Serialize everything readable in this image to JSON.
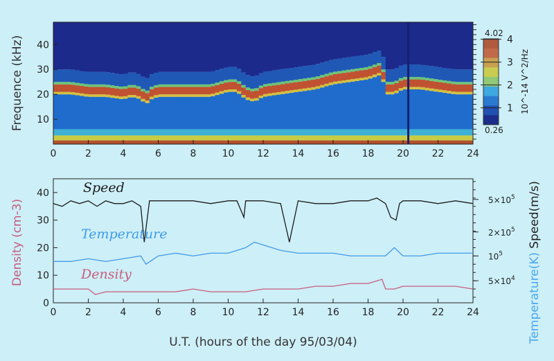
{
  "chart_data": [
    {
      "type": "heatmap",
      "title": "",
      "xlabel": "",
      "ylabel": "Frequence (kHz)",
      "xlim": [
        0,
        24
      ],
      "ylim": [
        0,
        49
      ],
      "xticks": [
        "0",
        "2",
        "4",
        "6",
        "8",
        "10",
        "12",
        "14",
        "16",
        "18",
        "20",
        "22",
        "24"
      ],
      "yticks": [
        "10",
        "20",
        "30",
        "40"
      ],
      "colorbar": {
        "label": "10^-14 V^2/Hz",
        "min_label": "0.26",
        "max_label": "4.02",
        "ticks": [
          "1",
          "2",
          "3",
          "4"
        ]
      },
      "ridge_hours": [
        0,
        1,
        2,
        3,
        4,
        4.5,
        5,
        5.3,
        5.6,
        6,
        7,
        8,
        9,
        10,
        10.5,
        11,
        11.5,
        12,
        13,
        14,
        15,
        16,
        17,
        18,
        18.8,
        19,
        19.5,
        20,
        21,
        22,
        23,
        24
      ],
      "ridge_khz": [
        22,
        22,
        21,
        21,
        20,
        21,
        20,
        18,
        20,
        21,
        21,
        21,
        21,
        23,
        23,
        20,
        19,
        21,
        22,
        23,
        24,
        26,
        27,
        28,
        30,
        22,
        22,
        24,
        24,
        23,
        22,
        22
      ],
      "dark_line_hour": 20.3
    },
    {
      "type": "line",
      "xlabel": "U.T. (hours of the day 95/03/04)",
      "ylabel": "Density (cm-3)",
      "ylim": [
        0,
        45
      ],
      "xlim": [
        0,
        24
      ],
      "xticks": [
        "0",
        "2",
        "4",
        "6",
        "8",
        "10",
        "12",
        "14",
        "16",
        "18",
        "20",
        "22",
        "24"
      ],
      "yticks": [
        "0",
        "10",
        "20",
        "30",
        "40"
      ],
      "right_axis": {
        "label_speed": "Speed(m/s)",
        "label_temp": "Temperature(K)",
        "ticks": [
          {
            "label": "5×10",
            "exp": "5",
            "v": 37.5
          },
          {
            "label": "2×10",
            "exp": "5",
            "v": 25.7
          },
          {
            "label": "10",
            "exp": "5",
            "v": 17
          },
          {
            "label": "5×10",
            "exp": "4",
            "v": 8
          }
        ]
      },
      "series": [
        {
          "name": "Speed",
          "color": "#1a1a1a",
          "x": [
            0,
            0.5,
            1,
            1.5,
            2,
            2.5,
            3,
            3.5,
            4,
            4.5,
            5,
            5.2,
            5.5,
            6,
            7,
            8,
            9,
            10,
            10.5,
            10.9,
            11,
            12,
            13,
            13.5,
            14,
            15,
            16,
            17,
            18,
            18.5,
            19,
            19.3,
            19.6,
            19.8,
            20,
            21,
            22,
            23,
            24
          ],
          "y": [
            36,
            35,
            37,
            36,
            37,
            35,
            37,
            36,
            36,
            37,
            35,
            22,
            37,
            37,
            37,
            37,
            36,
            37,
            37,
            31,
            37,
            37,
            36,
            22,
            37,
            36,
            36,
            37,
            37,
            38,
            36,
            31,
            30,
            36,
            37,
            37,
            36,
            37,
            36
          ]
        },
        {
          "name": "Temperature",
          "color": "#3f9ae8",
          "x": [
            0,
            1,
            2,
            3,
            4,
            5,
            5.3,
            6,
            7,
            8,
            9,
            10,
            10.5,
            11,
            11.5,
            12,
            13,
            14,
            15,
            16,
            17,
            18,
            19,
            19.5,
            20,
            21,
            22,
            23,
            24
          ],
          "y": [
            15,
            15,
            16,
            15,
            16,
            17,
            14,
            17,
            18,
            17,
            18,
            18,
            19,
            20,
            22,
            21,
            19,
            18,
            18,
            18,
            17,
            17,
            17,
            20,
            17,
            17,
            18,
            18,
            18
          ]
        },
        {
          "name": "Density",
          "color": "#c85c7c",
          "x": [
            0,
            1,
            2,
            2.4,
            3,
            4,
            5,
            6,
            7,
            8,
            9,
            10,
            11,
            12,
            13,
            14,
            15,
            16,
            17,
            18,
            18.8,
            19,
            19.5,
            20,
            21,
            22,
            23,
            24
          ],
          "y": [
            5,
            5,
            5,
            3,
            4,
            4,
            4,
            4,
            4,
            5,
            4,
            4,
            4,
            5,
            5,
            5,
            6,
            6,
            7,
            7,
            8.5,
            5,
            5,
            6,
            6,
            6,
            6,
            5
          ]
        }
      ]
    }
  ]
}
